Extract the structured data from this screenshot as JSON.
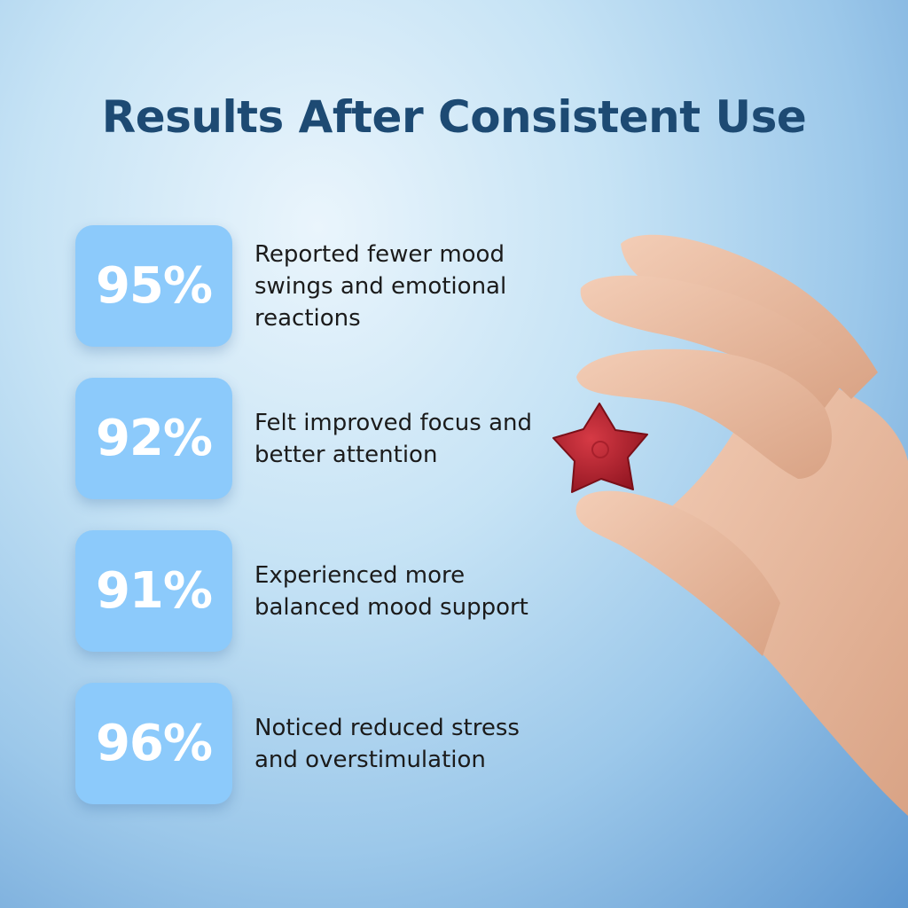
{
  "title": "Results After Consistent Use",
  "stats": [
    {
      "value": "95%",
      "text": "Reported fewer mood swings and emotional reactions"
    },
    {
      "value": "92%",
      "text": "Felt improved focus and better attention"
    },
    {
      "value": "91%",
      "text": "Experienced more balanced mood support"
    },
    {
      "value": "96%",
      "text": "Noticed reduced stress and overstimulation"
    }
  ]
}
